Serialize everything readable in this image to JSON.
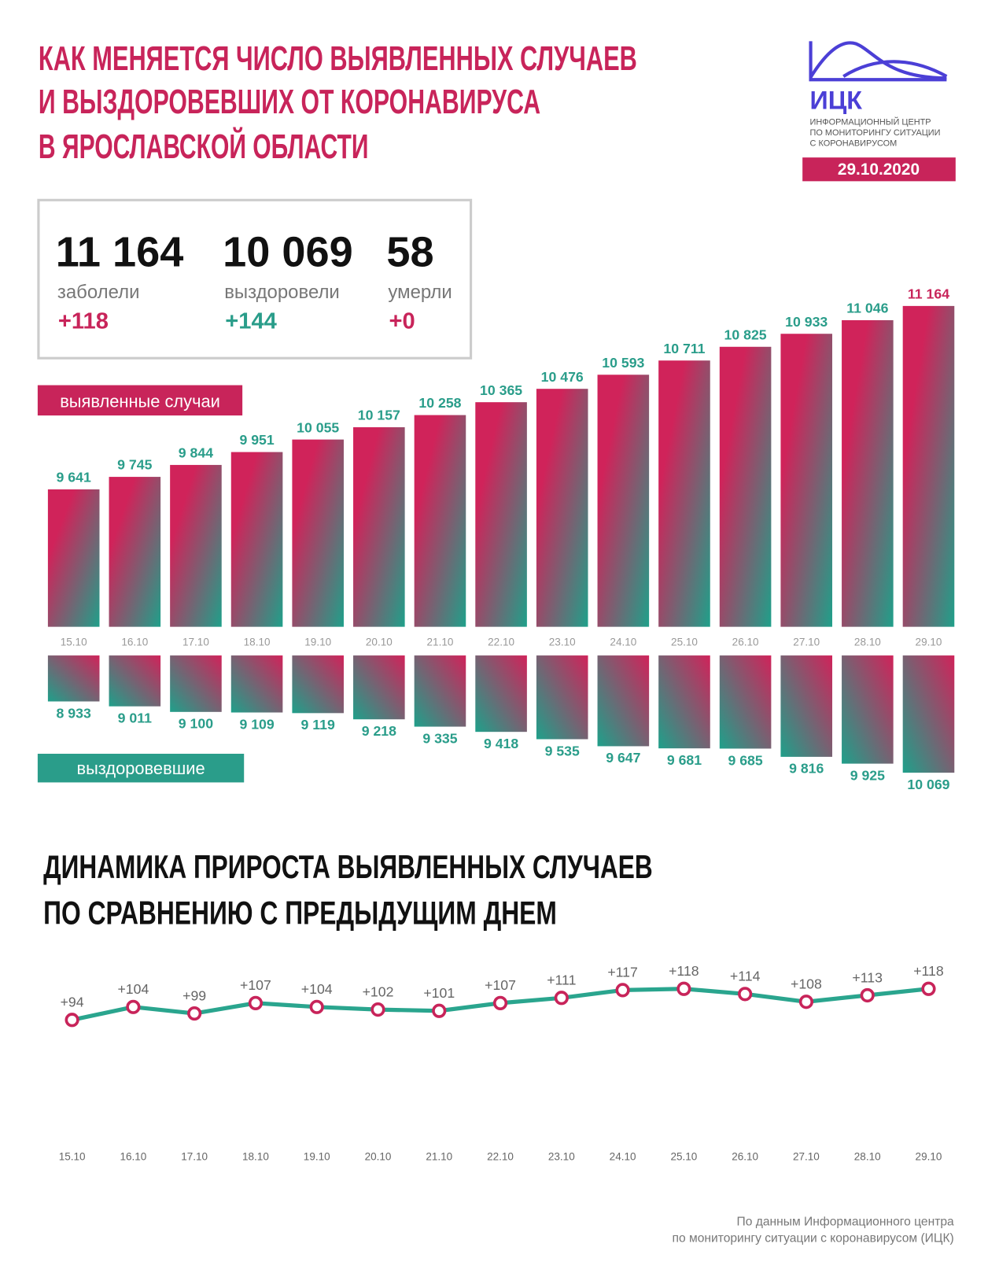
{
  "header": {
    "title": [
      "КАК МЕНЯЕТСЯ ЧИСЛО ВЫЯВЛЕННЫХ СЛУЧАЕВ",
      "И ВЫЗДОРОВЕВШИХ ОТ КОРОНАВИРУСА",
      "В ЯРОСЛАВСКОЙ ОБЛАСТИ"
    ],
    "logo_name": "ИЦК",
    "logo_subtitle": [
      "ИНФОРМАЦИОННЫЙ ЦЕНТР",
      "ПО МОНИТОРИНГУ СИТУАЦИИ",
      "С КОРОНАВИРУСОМ"
    ],
    "date": "29.10.2020"
  },
  "summary": [
    {
      "value": "11 164",
      "label": "заболели",
      "delta": "+118",
      "color": "#c8245a"
    },
    {
      "value": "10 069",
      "label": "выздоровели",
      "delta": "+144",
      "color": "#2a9d8a"
    },
    {
      "value": "58",
      "label": "умерли",
      "delta": "+0",
      "color": "#c8245a"
    }
  ],
  "chart_data": [
    {
      "type": "bar",
      "label": "выявленные случаи",
      "label_color": "#c8245a",
      "categories": [
        "15.10",
        "16.10",
        "17.10",
        "18.10",
        "19.10",
        "20.10",
        "21.10",
        "22.10",
        "23.10",
        "24.10",
        "25.10",
        "26.10",
        "27.10",
        "28.10",
        "29.10"
      ],
      "values": [
        9641,
        9745,
        9844,
        9951,
        10055,
        10157,
        10258,
        10365,
        10476,
        10593,
        10711,
        10825,
        10933,
        11046,
        11164
      ],
      "value_labels": [
        "9 641",
        "9 745",
        "9 844",
        "9 951",
        "10 055",
        "10 157",
        "10 258",
        "10 365",
        "10 476",
        "10 593",
        "10 711",
        "10 825",
        "10 933",
        "11 046",
        "11 164"
      ],
      "colors": [
        "#d0235a",
        "#1fa08a"
      ],
      "value_label_color": "#2a9d8a",
      "last_value_label_color": "#c8245a",
      "ylim": [
        8500,
        11200
      ]
    },
    {
      "type": "bar-down",
      "label": "выздоровевшие",
      "label_color": "#2a9d8a",
      "values": [
        8933,
        9011,
        9100,
        9109,
        9119,
        9218,
        9335,
        9418,
        9535,
        9647,
        9681,
        9685,
        9816,
        9925,
        10069
      ],
      "value_labels": [
        "8 933",
        "9 011",
        "9 100",
        "9 109",
        "9 119",
        "9 218",
        "9 335",
        "9 418",
        "9 535",
        "9 647",
        "9 681",
        "9 685",
        "9 816",
        "9 925",
        "10 069"
      ],
      "colors": [
        "#d0235a",
        "#1fa08a"
      ],
      "value_label_color": "#2a9d8a",
      "ylim": [
        8200,
        10100
      ]
    },
    {
      "type": "line",
      "title": [
        "ДИНАМИКА ПРИРОСТА ВЫЯВЛЕННЫХ СЛУЧАЕВ",
        "ПО СРАВНЕНИЮ С ПРЕДЫДУЩИМ ДНЕМ"
      ],
      "categories": [
        "15.10",
        "16.10",
        "17.10",
        "18.10",
        "19.10",
        "20.10",
        "21.10",
        "22.10",
        "23.10",
        "24.10",
        "25.10",
        "26.10",
        "27.10",
        "28.10",
        "29.10"
      ],
      "values": [
        94,
        104,
        99,
        107,
        104,
        102,
        101,
        107,
        111,
        117,
        118,
        114,
        108,
        113,
        118
      ],
      "value_labels": [
        "+94",
        "+104",
        "+99",
        "+107",
        "+104",
        "+102",
        "+101",
        "+107",
        "+111",
        "+117",
        "+118",
        "+114",
        "+108",
        "+113",
        "+118"
      ],
      "color": "#2aa58e",
      "marker_color": "#c8245a",
      "ylim": [
        60,
        130
      ]
    }
  ],
  "footer": [
    "По данным Информационного центра",
    "по мониторингу ситуации с коронавирусом (ИЦК)"
  ]
}
